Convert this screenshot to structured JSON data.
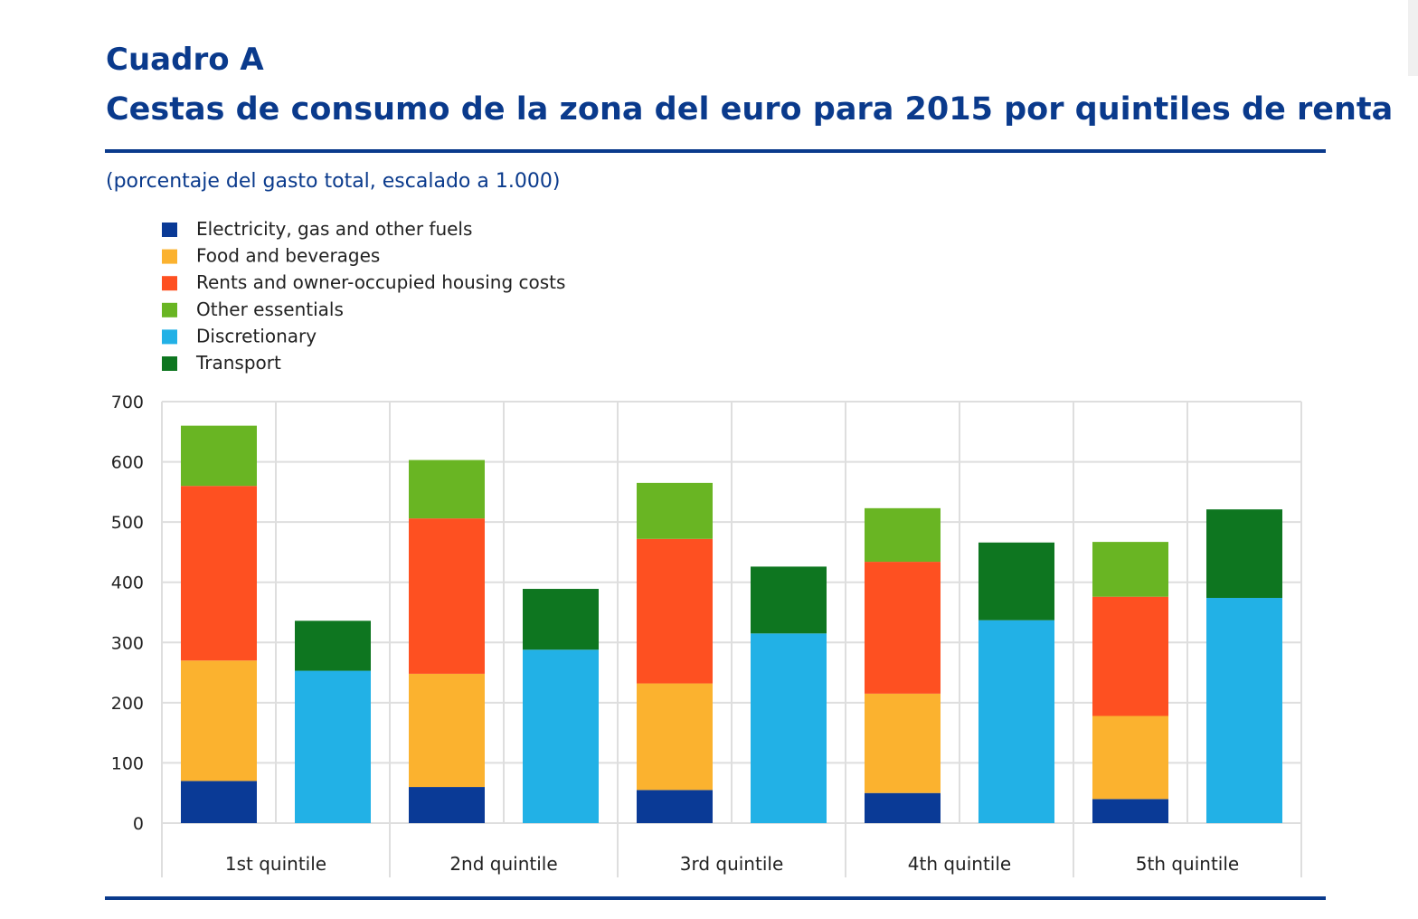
{
  "header": {
    "label": "Cuadro A",
    "title": "Cestas de consumo de la zona del euro para 2015 por quintiles de renta",
    "subtitle": "(porcentaje del gasto total, escalado a 1.000)"
  },
  "colors": {
    "brand": "#0a3a8c",
    "electricity": "#0a3a96",
    "food": "#fbb22f",
    "rents": "#fe5021",
    "other": "#69b523",
    "discretionary": "#22b1e6",
    "transport": "#0e7620",
    "grid": "#dedede"
  },
  "chart_data": {
    "type": "bar",
    "stacked": true,
    "title": "Cestas de consumo de la zona del euro para 2015 por quintiles de renta",
    "xlabel": "",
    "ylabel": "",
    "ylim": [
      0,
      700
    ],
    "yticks": [
      0,
      100,
      200,
      300,
      400,
      500,
      600,
      700
    ],
    "grid": true,
    "legend_position": "top-left",
    "categories": [
      "1st quintile",
      "2nd quintile",
      "3rd quintile",
      "4th quintile",
      "5th quintile"
    ],
    "legend": [
      {
        "key": "electricity",
        "label": "Electricity, gas and other fuels"
      },
      {
        "key": "food",
        "label": "Food and beverages"
      },
      {
        "key": "rents",
        "label": "Rents and owner-occupied housing costs"
      },
      {
        "key": "other",
        "label": "Other essentials"
      },
      {
        "key": "discretionary",
        "label": "Discretionary"
      },
      {
        "key": "transport",
        "label": "Transport"
      }
    ],
    "stacks": [
      {
        "name": "essentials",
        "series": [
          {
            "key": "electricity",
            "name": "Electricity, gas and other fuels",
            "values": [
              70,
              60,
              55,
              50,
              40
            ]
          },
          {
            "key": "food",
            "name": "Food and beverages",
            "values": [
              200,
              188,
              177,
              165,
              138
            ]
          },
          {
            "key": "rents",
            "name": "Rents and owner-occupied housing costs",
            "values": [
              290,
              258,
              240,
              219,
              198
            ]
          },
          {
            "key": "other",
            "name": "Other essentials",
            "values": [
              100,
              97,
              93,
              89,
              91
            ]
          }
        ]
      },
      {
        "name": "non-essentials",
        "series": [
          {
            "key": "discretionary",
            "name": "Discretionary",
            "values": [
              253,
              288,
              315,
              337,
              374
            ]
          },
          {
            "key": "transport",
            "name": "Transport",
            "values": [
              83,
              101,
              111,
              129,
              147
            ]
          }
        ]
      }
    ]
  }
}
